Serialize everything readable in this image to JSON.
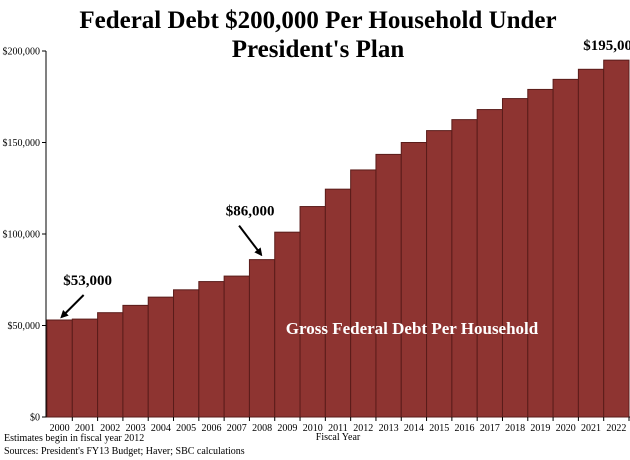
{
  "chart_data": {
    "type": "bar",
    "title_line1": "Federal Debt $200,000 Per Household Under",
    "title_line2": "President's Plan",
    "xlabel": "Fiscal Year",
    "ylabel": "",
    "categories": [
      "2000",
      "2001",
      "2002",
      "2003",
      "2004",
      "2005",
      "2006",
      "2007",
      "2008",
      "2009",
      "2010",
      "2011",
      "2012",
      "2013",
      "2014",
      "2015",
      "2016",
      "2017",
      "2018",
      "2019",
      "2020",
      "2021",
      "2022"
    ],
    "values": [
      53000,
      53500,
      57000,
      61000,
      65500,
      69500,
      74000,
      77000,
      86000,
      101000,
      115000,
      124500,
      135000,
      143500,
      150000,
      156500,
      162500,
      168000,
      174000,
      179000,
      184500,
      190000,
      195000
    ],
    "ylim": [
      0,
      200000
    ],
    "yticks": [
      0,
      50000,
      100000,
      150000,
      200000
    ],
    "ytick_labels": [
      "$0",
      "$50,000",
      "$100,000",
      "$150,000",
      "$200,000"
    ],
    "series_label": "Gross Federal Debt Per Household",
    "annotations": [
      {
        "text": "$53,000",
        "category": "2000"
      },
      {
        "text": "$86,000",
        "category": "2008"
      },
      {
        "text": "$195,000",
        "category": "2022"
      }
    ],
    "notes": [
      "Estimates begin in fiscal year 2012",
      "Sources: President's FY13 Budget; Haver; SBC calculations"
    ],
    "colors": {
      "bar": "#8e3431",
      "bar_edge": "#5a1c1a"
    },
    "grid": false
  }
}
